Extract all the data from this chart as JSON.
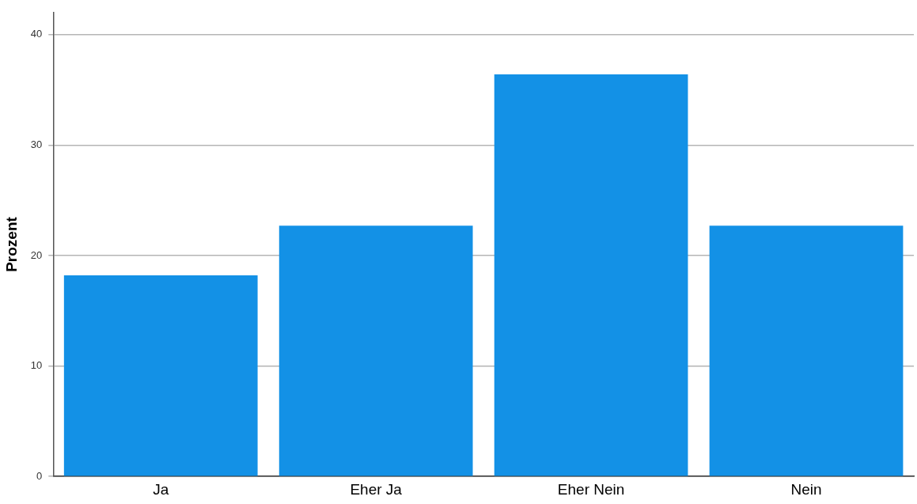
{
  "chart_data": {
    "type": "bar",
    "ylabel": "Prozent",
    "categories": [
      "Ja",
      "Eher Ja",
      "Eher Nein",
      "Nein"
    ],
    "values": [
      18.2,
      22.7,
      36.4,
      22.7
    ],
    "color": "#1391e6",
    "ylim": [
      0,
      42
    ],
    "yticks": [
      0,
      10,
      20,
      30,
      40
    ],
    "grid": "y",
    "legend": false
  }
}
